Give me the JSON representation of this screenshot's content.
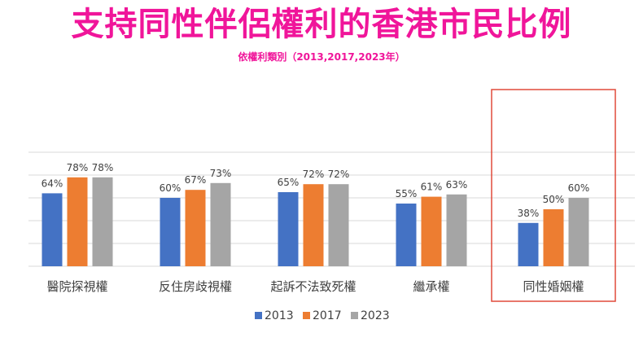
{
  "title": "支持同性伴侶權利的香港市民比例",
  "subtitle": "依權利類別（2013,2017,2023年）",
  "highlight_color": "#e04a3a",
  "title_color": "#f0159a",
  "chart_data": {
    "type": "bar",
    "categories": [
      "醫院探視權",
      "反住房歧視權",
      "起訴不法致死權",
      "繼承權",
      "同性婚姻權"
    ],
    "series": [
      {
        "name": "2013",
        "values": [
          64,
          60,
          65,
          55,
          38
        ],
        "color": "#4472c4"
      },
      {
        "name": "2017",
        "values": [
          78,
          67,
          72,
          61,
          50
        ],
        "color": "#ed7d31"
      },
      {
        "name": "2023",
        "values": [
          78,
          73,
          72,
          63,
          60
        ],
        "color": "#a5a5a5"
      }
    ],
    "value_suffix": "%",
    "ylim": [
      0,
      100
    ],
    "grid": true,
    "legend_position": "bottom",
    "highlighted_category": "同性婚姻權"
  }
}
